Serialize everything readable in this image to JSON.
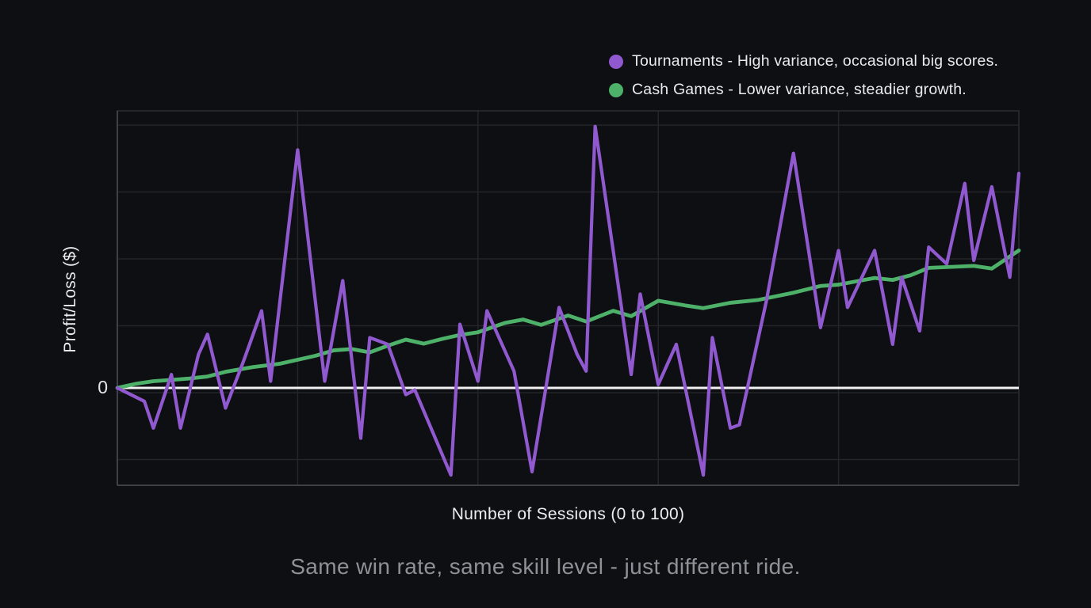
{
  "legend": {
    "items": [
      {
        "name": "tournaments",
        "label": "Tournaments - High variance, occasional big scores.",
        "color": "#9159cf"
      },
      {
        "name": "cash-games",
        "label": "Cash Games - Lower variance, steadier growth.",
        "color": "#4eb169"
      }
    ]
  },
  "axes": {
    "y_label": "Profit/Loss ($)",
    "x_label": "Number of Sessions (0 to 100)",
    "zero_tick": "0"
  },
  "caption": "Same win rate, same skill level - just different ride.",
  "colors": {
    "background": "#0e0f12",
    "gridline": "#242529",
    "plot_border": "#2c2d32",
    "axis_line": "#3f4046",
    "zero_line": "#f2f2f2",
    "tournaments": "#9159cf",
    "cash_games": "#4eb169",
    "caption_text": "#8d9298",
    "label_text": "#eceef0"
  },
  "chart_data": {
    "type": "line",
    "title": "",
    "xlabel": "Number of Sessions (0 to 100)",
    "ylabel": "Profit/Loss ($)",
    "x_range": [
      0,
      100
    ],
    "y_range_grid_units": [
      -1.45,
      4.13
    ],
    "y_tick_labels": [
      "0"
    ],
    "y_units": "unlabeled dollars; values given in horizontal-gridline spacing units relative to the 0 line",
    "grid": true,
    "zero_line": true,
    "legend_position": "top-right",
    "series": [
      {
        "name": "Tournaments",
        "color": "#9159cf",
        "points": [
          [
            0,
            0
          ],
          [
            3,
            -0.2
          ],
          [
            4,
            -0.6
          ],
          [
            6,
            0.2
          ],
          [
            7,
            -0.6
          ],
          [
            9,
            0.5
          ],
          [
            10,
            0.8
          ],
          [
            12,
            -0.3
          ],
          [
            14,
            0.4
          ],
          [
            16,
            1.15
          ],
          [
            17,
            0.1
          ],
          [
            20,
            3.55
          ],
          [
            23,
            0.1
          ],
          [
            25,
            1.6
          ],
          [
            27,
            -0.75
          ],
          [
            28,
            0.75
          ],
          [
            30,
            0.65
          ],
          [
            32,
            -0.1
          ],
          [
            33,
            -0.03
          ],
          [
            37,
            -1.3
          ],
          [
            38,
            0.95
          ],
          [
            40,
            0.1
          ],
          [
            41,
            1.15
          ],
          [
            44,
            0.25
          ],
          [
            46,
            -1.25
          ],
          [
            49,
            1.2
          ],
          [
            51,
            0.5
          ],
          [
            52,
            0.25
          ],
          [
            53,
            3.9
          ],
          [
            57,
            0.2
          ],
          [
            58,
            1.4
          ],
          [
            60,
            0.05
          ],
          [
            62,
            0.65
          ],
          [
            65,
            -1.3
          ],
          [
            66,
            0.75
          ],
          [
            68,
            -0.6
          ],
          [
            69,
            -0.55
          ],
          [
            72,
            1.3
          ],
          [
            75,
            3.5
          ],
          [
            78,
            0.9
          ],
          [
            80,
            2.05
          ],
          [
            81,
            1.2
          ],
          [
            84,
            2.05
          ],
          [
            86,
            0.65
          ],
          [
            87,
            1.65
          ],
          [
            89,
            0.85
          ],
          [
            90,
            2.1
          ],
          [
            92,
            1.85
          ],
          [
            94,
            3.05
          ],
          [
            95,
            1.9
          ],
          [
            97,
            3.0
          ],
          [
            99,
            1.65
          ],
          [
            100,
            3.2
          ]
        ]
      },
      {
        "name": "Cash Games",
        "color": "#4eb169",
        "points": [
          [
            0,
            0
          ],
          [
            2,
            0.06
          ],
          [
            4,
            0.1
          ],
          [
            6,
            0.12
          ],
          [
            8,
            0.14
          ],
          [
            10,
            0.17
          ],
          [
            12,
            0.24
          ],
          [
            15,
            0.31
          ],
          [
            18,
            0.36
          ],
          [
            20,
            0.42
          ],
          [
            22,
            0.48
          ],
          [
            24,
            0.56
          ],
          [
            26,
            0.58
          ],
          [
            28,
            0.53
          ],
          [
            30,
            0.63
          ],
          [
            32,
            0.72
          ],
          [
            34,
            0.66
          ],
          [
            36,
            0.73
          ],
          [
            38,
            0.79
          ],
          [
            40,
            0.83
          ],
          [
            43,
            0.97
          ],
          [
            45,
            1.02
          ],
          [
            47,
            0.94
          ],
          [
            50,
            1.08
          ],
          [
            52,
            0.99
          ],
          [
            55,
            1.15
          ],
          [
            57,
            1.07
          ],
          [
            60,
            1.3
          ],
          [
            63,
            1.23
          ],
          [
            65,
            1.19
          ],
          [
            68,
            1.27
          ],
          [
            71,
            1.31
          ],
          [
            75,
            1.42
          ],
          [
            78,
            1.52
          ],
          [
            80,
            1.54
          ],
          [
            84,
            1.64
          ],
          [
            86,
            1.61
          ],
          [
            88,
            1.68
          ],
          [
            90,
            1.79
          ],
          [
            95,
            1.82
          ],
          [
            97,
            1.78
          ],
          [
            100,
            2.05
          ]
        ]
      }
    ]
  }
}
